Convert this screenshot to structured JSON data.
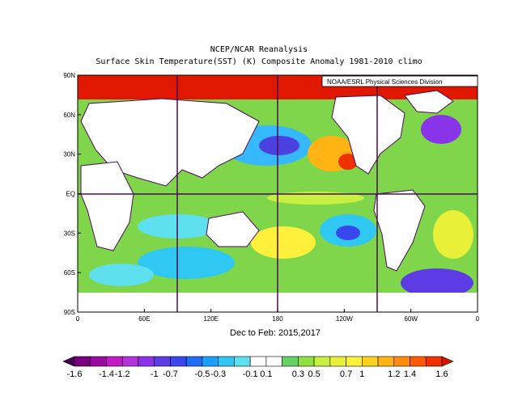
{
  "title_line1": "NCEP/NCAR Reanalysis",
  "title_line2": "Surface Skin Temperature(SST) (K) Composite Anomaly 1981-2010 climo",
  "credit": "NOAA/ESRL Physical Sciences Division",
  "subtitle": "Dec to Feb: 2015,2017",
  "lat_labels": [
    "90N",
    "60N",
    "30N",
    "EQ",
    "30S",
    "60S",
    "90S"
  ],
  "lon_labels": [
    "0",
    "60E",
    "120E",
    "180",
    "120W",
    "60W",
    "0"
  ],
  "colorbar": {
    "labels": [
      "-1.6",
      "-1.4",
      "-1.2",
      "-1",
      "-0.7",
      "-0.5",
      "-0.3",
      "-0.1",
      "0.1",
      "0.3",
      "0.5",
      "0.7",
      "1",
      "1.2",
      "1.4",
      "1.6"
    ],
    "colors": [
      "#4a0052",
      "#75007a",
      "#9d0aa3",
      "#c21cc8",
      "#b332d9",
      "#8a34ea",
      "#5d3ce6",
      "#3a46f0",
      "#1f6cf5",
      "#1aa0ff",
      "#2ec8f2",
      "#5fe0ee",
      "#ffffff",
      "#ffffff",
      "#64d264",
      "#90e040",
      "#c8f040",
      "#e8f038",
      "#fff03c",
      "#ffd21e",
      "#ffb414",
      "#ff8c0a",
      "#ff5a00",
      "#f03000",
      "#d21400"
    ]
  },
  "map_style": {
    "ocean_base": "#7fd64a",
    "land": "#ffffff",
    "coast": "#4b0b55",
    "grid": "#4b0b55"
  }
}
